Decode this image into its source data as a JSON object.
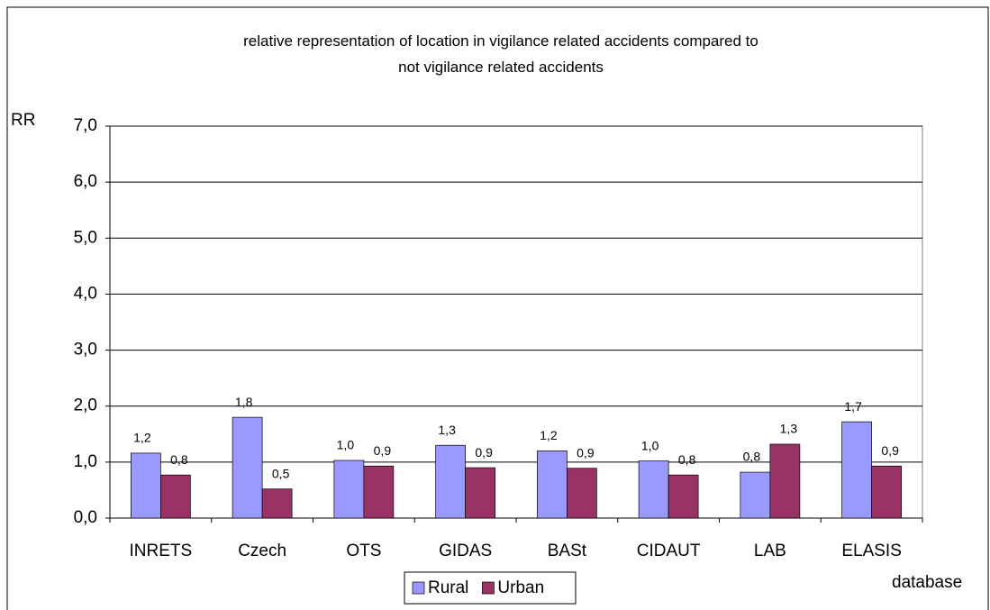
{
  "chart_data": {
    "type": "bar",
    "title": "relative representation of location in vigilance related accidents compared to not vigilance related accidents",
    "y_label": "RR",
    "x_label": "database",
    "categories": [
      "INRETS",
      "Czech",
      "OTS",
      "GIDAS",
      "BASt",
      "CIDAUT",
      "LAB",
      "ELASIS"
    ],
    "series": [
      {
        "name": "Rural",
        "color": "#9999ff",
        "values": [
          1.16,
          1.8,
          1.03,
          1.3,
          1.2,
          1.02,
          0.82,
          1.72
        ],
        "value_labels": [
          "1,2",
          "1,8",
          "1,0",
          "1,3",
          "1,2",
          "1,0",
          "0,8",
          "1,7"
        ]
      },
      {
        "name": "Urban",
        "color": "#993366",
        "values": [
          0.77,
          0.52,
          0.93,
          0.9,
          0.89,
          0.77,
          1.32,
          0.93
        ],
        "value_labels": [
          "0,8",
          "0,5",
          "0,9",
          "0,9",
          "0,9",
          "0,8",
          "1,3",
          "0,9"
        ]
      }
    ],
    "ylim": [
      0,
      7
    ],
    "yticks": [
      {
        "value": 0,
        "label": "0,0"
      },
      {
        "value": 1,
        "label": "1,0"
      },
      {
        "value": 2,
        "label": "2,0"
      },
      {
        "value": 3,
        "label": "3,0"
      },
      {
        "value": 4,
        "label": "4,0"
      },
      {
        "value": 5,
        "label": "5,0"
      },
      {
        "value": 6,
        "label": "6,0"
      },
      {
        "value": 7,
        "label": "7,0"
      }
    ],
    "grid": true,
    "legend": "bottom"
  }
}
